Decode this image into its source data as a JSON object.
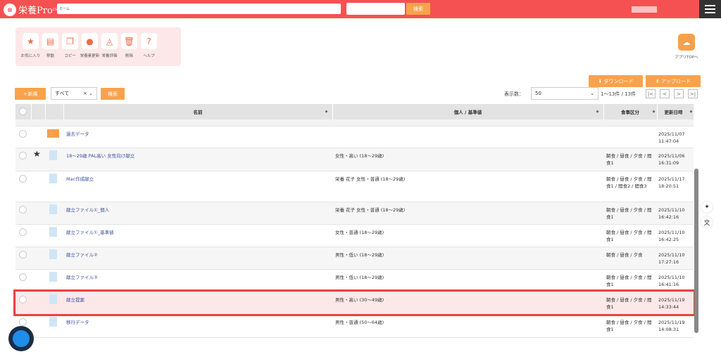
{
  "header": {
    "logo_text": "栄養Pro",
    "logo_sup": "Cloud",
    "breadcrumb": "ホーム",
    "search_placeholder": "",
    "search_label": "検索"
  },
  "toolbar": [
    {
      "icon": "star-icon",
      "glyph": "★",
      "label": "お気に入り"
    },
    {
      "icon": "move-folder-icon",
      "glyph": "▤",
      "label": "移動"
    },
    {
      "icon": "copy-icon",
      "glyph": "❐",
      "label": "コピー"
    },
    {
      "icon": "nutrient-update-icon",
      "glyph": "●",
      "label": "栄養素更新"
    },
    {
      "icon": "nutrition-eval-icon",
      "glyph": "◬",
      "label": "栄養評価"
    },
    {
      "icon": "trash-icon",
      "glyph": "🗑",
      "label": "削除"
    },
    {
      "icon": "help-icon",
      "glyph": "?",
      "label": "ヘルプ"
    }
  ],
  "app_top": {
    "label": "アプリTOPへ"
  },
  "actions": {
    "download": "⬇ ダウンロード",
    "upload": "⬆ アップロード",
    "new": "＋新規",
    "filter": "すべて",
    "search": "検索"
  },
  "paging": {
    "label": "表示数：",
    "per_page": "50",
    "range": "1〜13件 / 13件",
    "first": "|<",
    "prev": "<",
    "next": ">",
    "last": ">|"
  },
  "table": {
    "columns": [
      "名前",
      "個人 / 基準値",
      "食事区分",
      "更新日時"
    ],
    "rows": [
      {
        "type": "folder",
        "name": "過去データ",
        "person": "",
        "meal": "",
        "date": "2025/11/07",
        "time": "11:47:04",
        "fav": false
      },
      {
        "type": "file",
        "name": "18〜29歳 PAL高い 女性向け献立",
        "person": "女性・高い (18〜29歳)",
        "meal": "朝食 / 昼食 / 夕食 / 間食1",
        "date": "2025/11/06",
        "time": "16:31:09",
        "fav": true
      },
      {
        "type": "file",
        "name": "Mac作成献立",
        "person": "栄養 花子 女性・普通 (18〜29歳)",
        "meal": "朝食 / 昼食 / 夕食 / 間食1 / 間食2 / 間食3",
        "date": "2025/11/17",
        "time": "18:20:51",
        "fav": false
      },
      {
        "type": "file",
        "name": "献立ファイル①_個人",
        "person": "栄養 花子 女性・普通 (18〜29歳)",
        "meal": "朝食 / 昼食 / 夕食 / 間食1",
        "date": "2025/11/10",
        "time": "16:42:16",
        "fav": false
      },
      {
        "type": "file",
        "name": "献立ファイル①_基準値",
        "person": "女性・普通 (18〜29歳)",
        "meal": "朝食 / 昼食 / 夕食 / 間食1",
        "date": "2025/11/10",
        "time": "16:42:25",
        "fav": false
      },
      {
        "type": "file",
        "name": "献立ファイル②",
        "person": "男性・低い (18〜29歳)",
        "meal": "朝食 / 昼食 / 夕食",
        "date": "2025/11/10",
        "time": "17:27:16",
        "fav": false
      },
      {
        "type": "file",
        "name": "献立ファイル③",
        "person": "男性・低い (18〜29歳)",
        "meal": "朝食 / 昼食 / 夕食 / 間食1",
        "date": "2025/11/10",
        "time": "16:41:16",
        "fav": false
      },
      {
        "type": "file",
        "name": "献立提案",
        "person": "男性・高い (30〜49歳)",
        "meal": "朝食 / 昼食 / 夕食 / 間食1",
        "date": "2025/11/19",
        "time": "14:33:44",
        "fav": false,
        "highlighted": true
      },
      {
        "type": "file",
        "name": "移行データ",
        "person": "男性・普通 (50〜64歳)",
        "meal": "朝食 / 昼食 / 夕食 / 間食1",
        "date": "2025/11/19",
        "time": "14:08:31",
        "fav": false
      }
    ]
  },
  "colors": {
    "brand": "#f65152",
    "accent": "#f9a24b",
    "highlight": "#f0403f"
  }
}
